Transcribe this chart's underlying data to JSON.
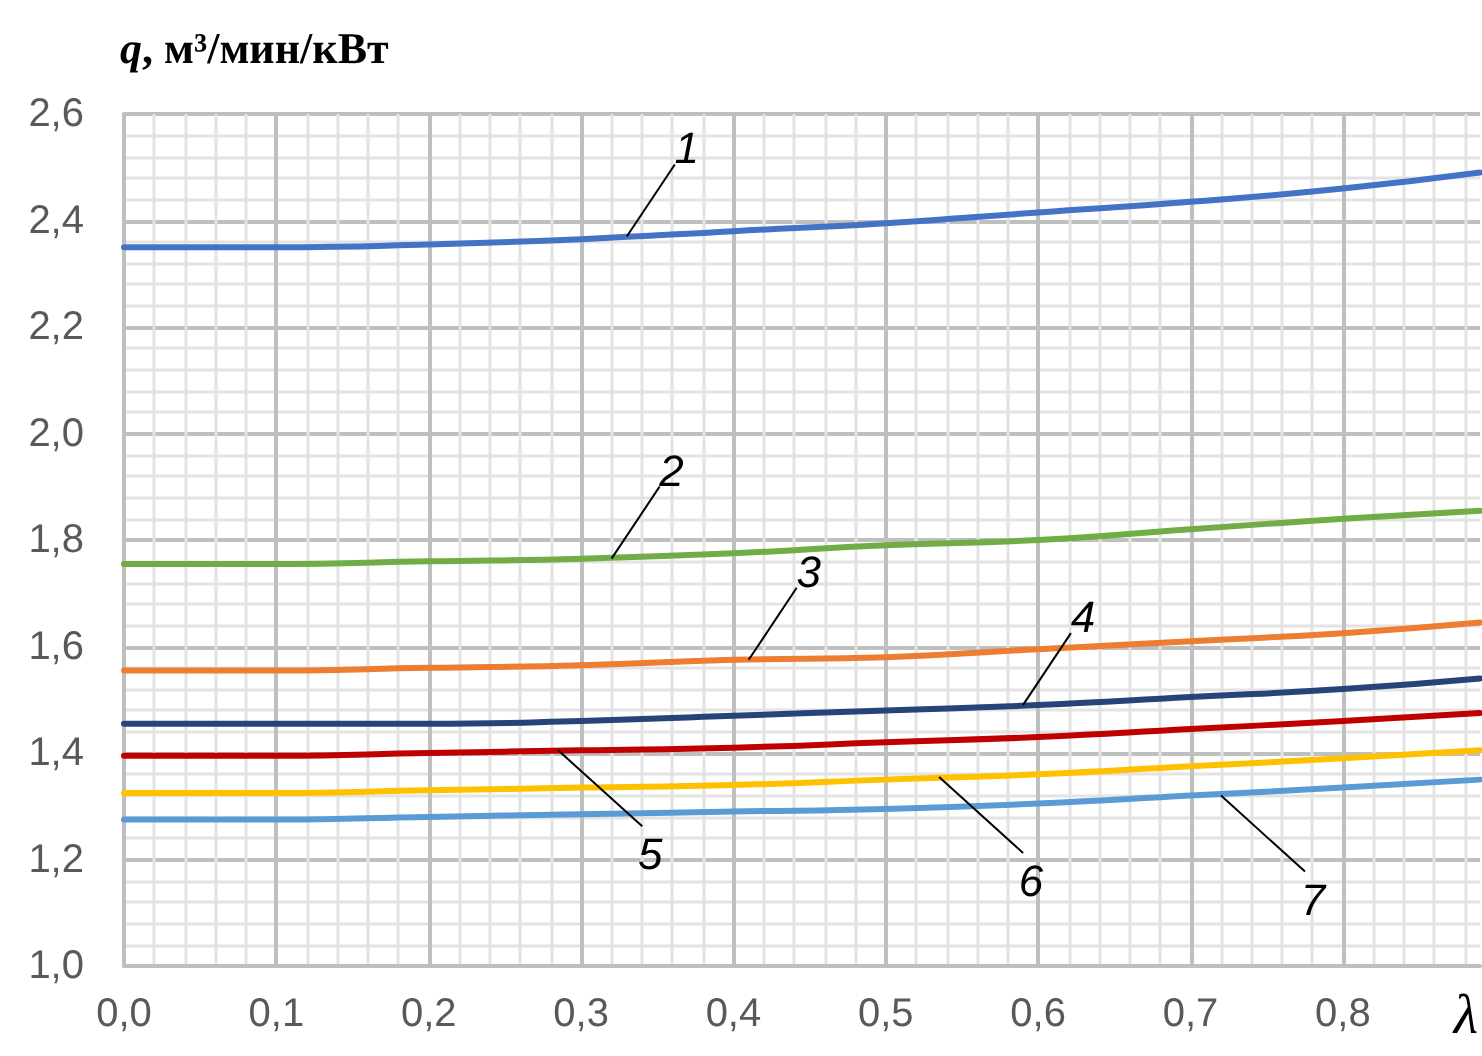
{
  "chart_data": {
    "type": "line",
    "ylabel": "q, м³/мин/кВт",
    "xlabel": "λ",
    "x": [
      0,
      0.1,
      0.2,
      0.3,
      0.4,
      0.5,
      0.6,
      0.7,
      0.8,
      0.89
    ],
    "series": [
      {
        "color": "#4472c4",
        "values": [
          2.35,
          2.35,
          2.355,
          2.365,
          2.38,
          2.395,
          2.415,
          2.435,
          2.46,
          2.49
        ]
      },
      {
        "color": "#70ad47",
        "values": [
          1.755,
          1.755,
          1.76,
          1.765,
          1.775,
          1.79,
          1.8,
          1.82,
          1.84,
          1.855
        ]
      },
      {
        "color": "#ed7d31",
        "values": [
          1.555,
          1.555,
          1.56,
          1.565,
          1.575,
          1.58,
          1.595,
          1.61,
          1.625,
          1.645
        ]
      },
      {
        "color": "#264478",
        "values": [
          1.455,
          1.455,
          1.455,
          1.46,
          1.47,
          1.48,
          1.49,
          1.505,
          1.52,
          1.54
        ]
      },
      {
        "color": "#c00000",
        "values": [
          1.395,
          1.395,
          1.4,
          1.405,
          1.41,
          1.42,
          1.43,
          1.445,
          1.46,
          1.475
        ]
      },
      {
        "color": "#ffc000",
        "values": [
          1.325,
          1.325,
          1.33,
          1.335,
          1.34,
          1.35,
          1.36,
          1.375,
          1.39,
          1.405
        ]
      },
      {
        "color": "#5b9bd5",
        "values": [
          1.275,
          1.275,
          1.28,
          1.285,
          1.29,
          1.295,
          1.305,
          1.32,
          1.335,
          1.35
        ]
      }
    ],
    "xlim": [
      0,
      0.89
    ],
    "xticks": [
      {
        "value": 0,
        "label": "0,0"
      },
      {
        "value": 0.1,
        "label": "0,1"
      },
      {
        "value": 0.2,
        "label": "0,2"
      },
      {
        "value": 0.3,
        "label": "0,3"
      },
      {
        "value": 0.4,
        "label": "0,4"
      },
      {
        "value": 0.5,
        "label": "0,5"
      },
      {
        "value": 0.6,
        "label": "0,6"
      },
      {
        "value": 0.7,
        "label": "0,7"
      },
      {
        "value": 0.8,
        "label": "0,8"
      }
    ],
    "ylim": [
      1.0,
      2.6
    ],
    "yticks": [
      {
        "value": 1.0,
        "label": "1,0"
      },
      {
        "value": 1.2,
        "label": "1,2"
      },
      {
        "value": 1.4,
        "label": "1,4"
      },
      {
        "value": 1.6,
        "label": "1,6"
      },
      {
        "value": 1.8,
        "label": "1,8"
      },
      {
        "value": 2.0,
        "label": "2,0"
      },
      {
        "value": 2.2,
        "label": "2,2"
      },
      {
        "value": 2.4,
        "label": "2,4"
      },
      {
        "value": 2.6,
        "label": "2,6"
      }
    ],
    "grid": true,
    "marker": "none",
    "line_style": "solid",
    "annotations": [
      {
        "text": "1",
        "x": 0.33,
        "y": 2.37
      },
      {
        "text": "2",
        "x": 0.32,
        "y": 1.765
      },
      {
        "text": "3",
        "x": 0.41,
        "y": 1.575
      },
      {
        "text": "4",
        "x": 0.59,
        "y": 1.49
      },
      {
        "text": "5",
        "x": 0.285,
        "y": 1.405
      },
      {
        "text": "6",
        "x": 0.535,
        "y": 1.355
      },
      {
        "text": "7",
        "x": 0.72,
        "y": 1.32
      }
    ]
  }
}
